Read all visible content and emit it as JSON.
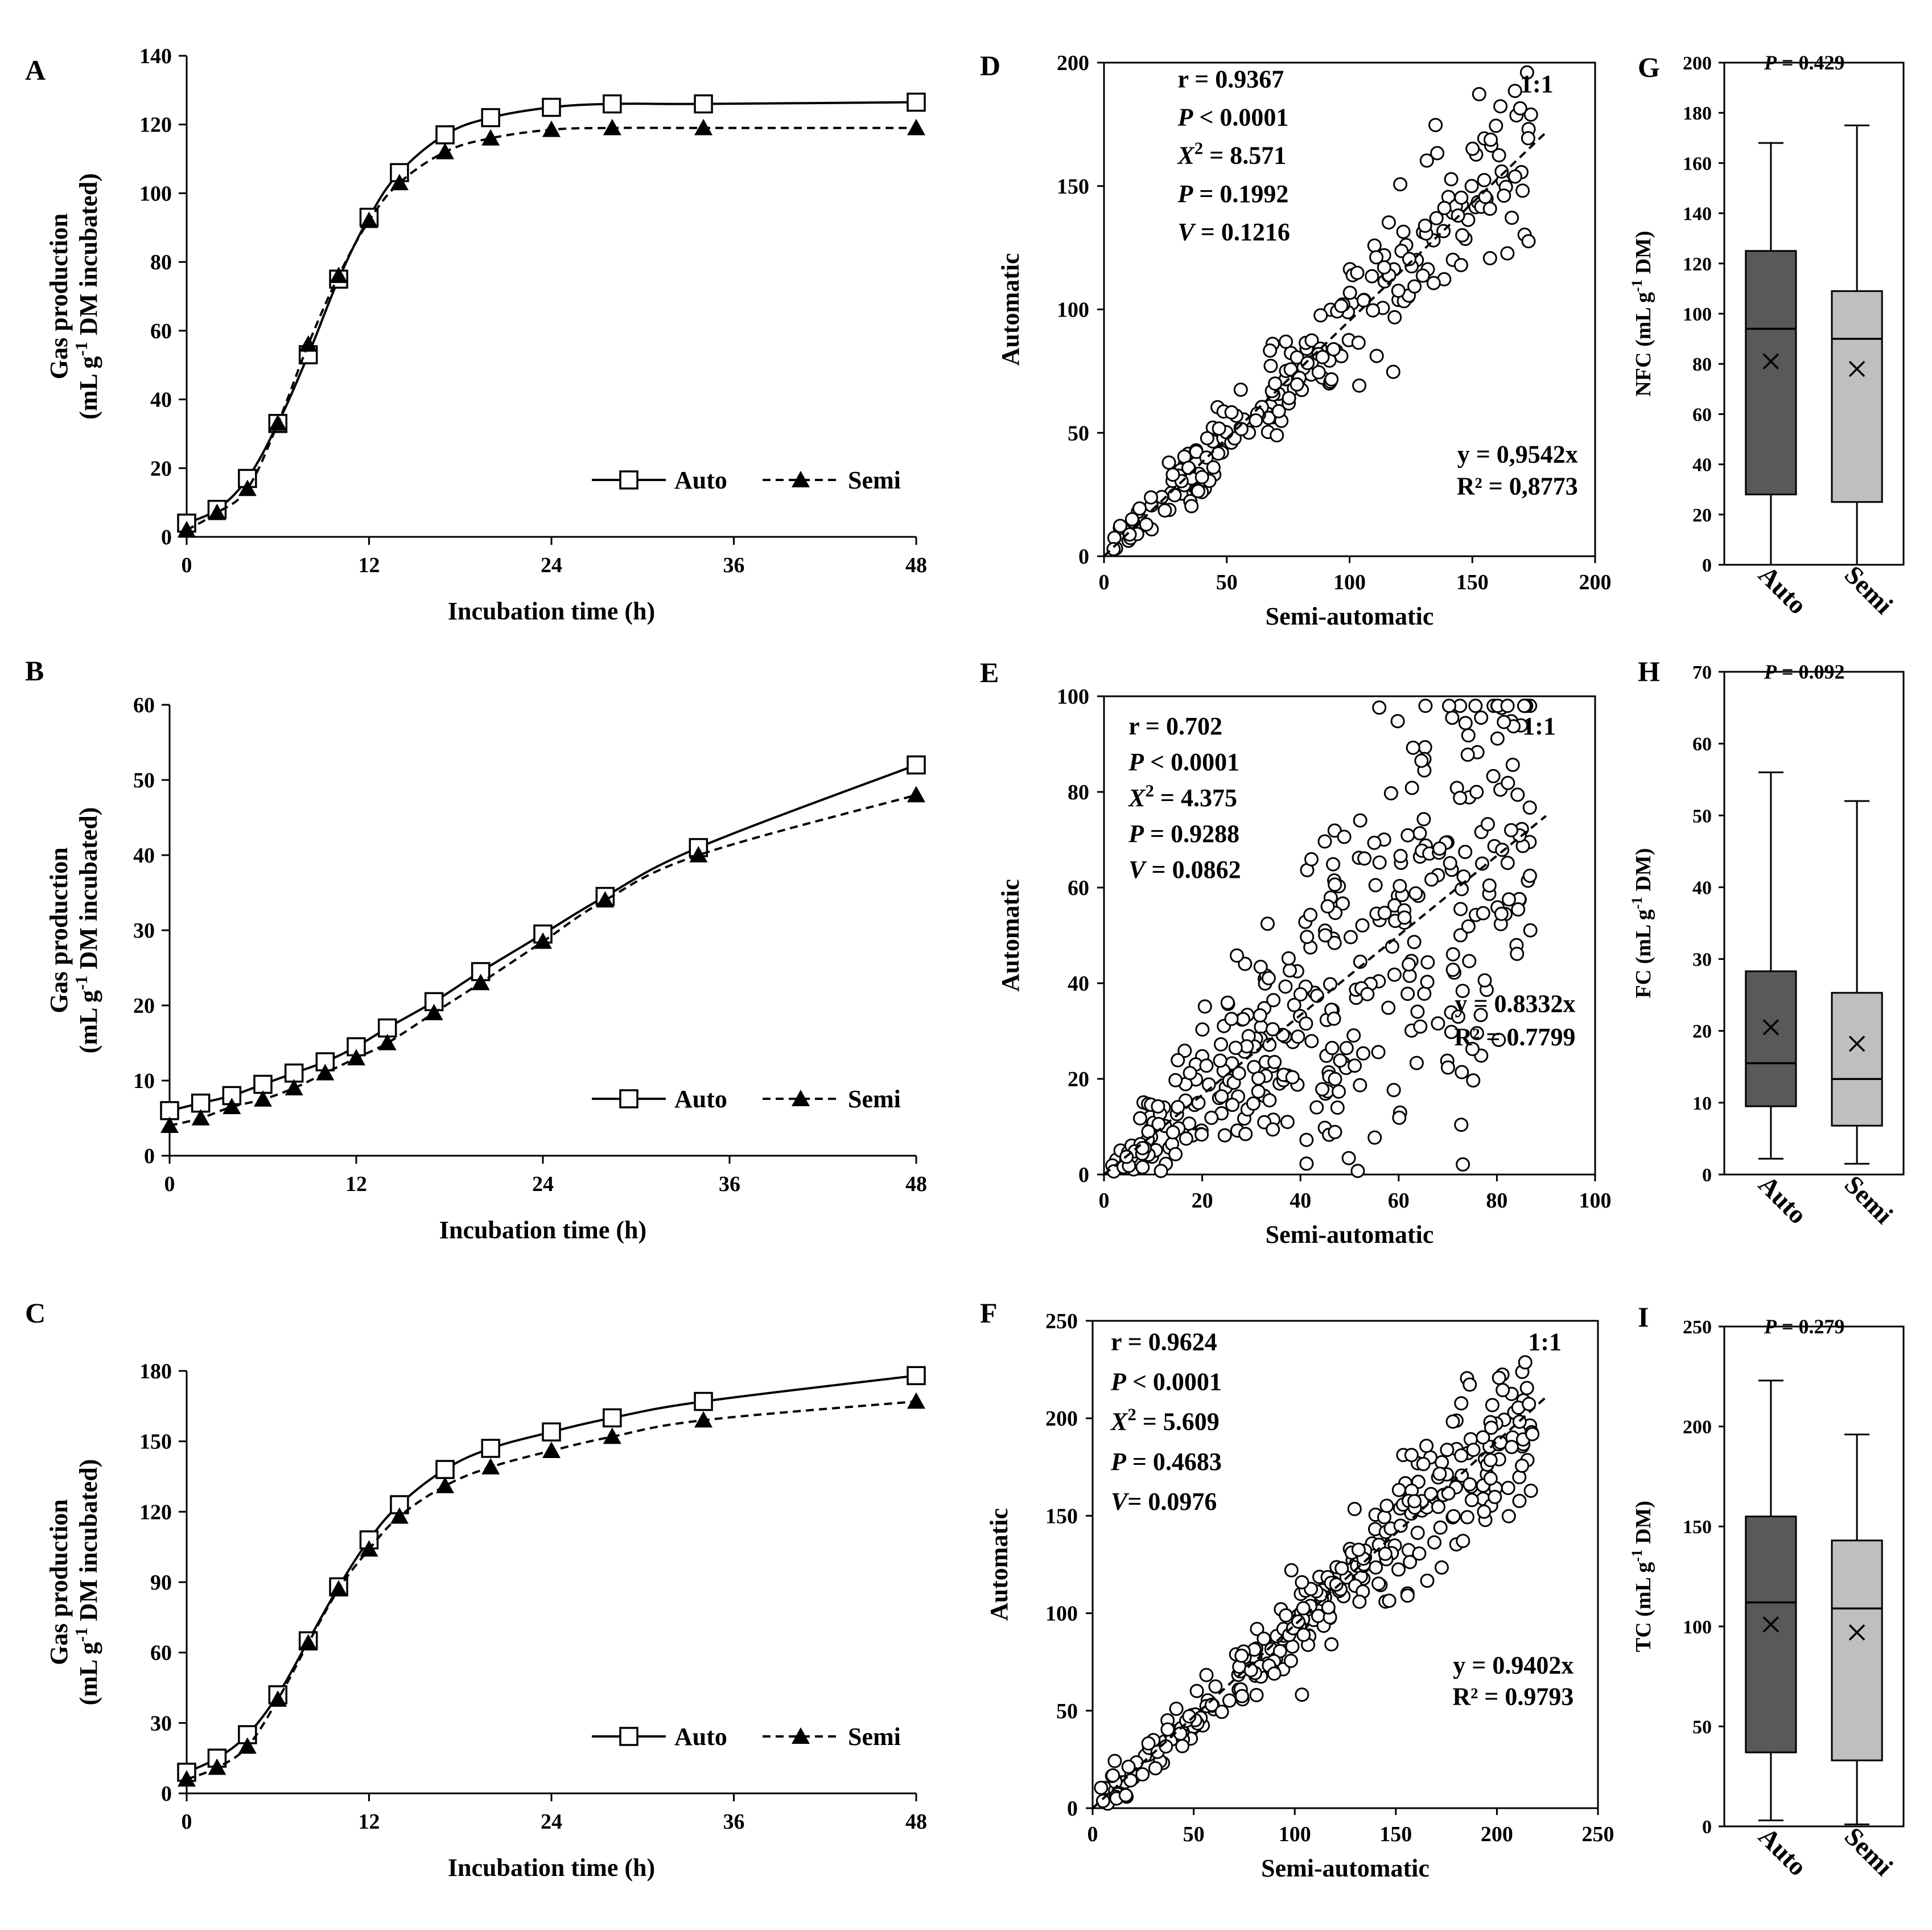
{
  "figure": {
    "background": "#ffffff",
    "line_color": "#000000",
    "box_colors": [
      "#595959",
      "#bfbfbf"
    ]
  },
  "chart_data": [
    {
      "id": "A",
      "type": "line",
      "letter": "A",
      "xlabel": "Incubation time (h)",
      "ylabel_line1": "Gas production",
      "ylabel_line2": "(mL g-1 DM incubated)",
      "xlim": [
        0,
        48
      ],
      "ylim": [
        0,
        140
      ],
      "xticks": [
        0,
        12,
        24,
        36,
        48
      ],
      "yticks": [
        0,
        20,
        40,
        60,
        80,
        100,
        120,
        140
      ],
      "legend": [
        "Auto",
        "Semi"
      ],
      "series": [
        {
          "name": "Auto",
          "marker": "square-open",
          "line": "solid",
          "x": [
            0,
            2,
            4,
            6,
            8,
            10,
            12,
            14,
            17,
            20,
            24,
            28,
            34,
            48
          ],
          "y": [
            4,
            8,
            17,
            33,
            53,
            75,
            93,
            106,
            117,
            122,
            125,
            126,
            126,
            126.5
          ]
        },
        {
          "name": "Semi",
          "marker": "triangle-filled",
          "line": "dashed",
          "x": [
            0,
            2,
            4,
            6,
            8,
            10,
            12,
            14,
            17,
            20,
            24,
            28,
            34,
            48
          ],
          "y": [
            2,
            7,
            14,
            33,
            56,
            76,
            92,
            103,
            112,
            116,
            118.5,
            119,
            119,
            119
          ]
        }
      ]
    },
    {
      "id": "B",
      "type": "line",
      "letter": "B",
      "xlabel": "Incubation time (h)",
      "ylabel_line1": "Gas production",
      "ylabel_line2": "(mL g-1 DM incubated)",
      "xlim": [
        0,
        48
      ],
      "ylim": [
        0,
        60
      ],
      "xticks": [
        0,
        12,
        24,
        36,
        48
      ],
      "yticks": [
        0,
        10,
        20,
        30,
        40,
        50,
        60
      ],
      "legend": [
        "Auto",
        "Semi"
      ],
      "series": [
        {
          "name": "Auto",
          "marker": "square-open",
          "line": "solid",
          "x": [
            0,
            2,
            4,
            6,
            8,
            10,
            12,
            14,
            17,
            20,
            24,
            28,
            34,
            48
          ],
          "y": [
            6,
            7,
            8,
            9.5,
            11,
            12.5,
            14.5,
            17,
            20.5,
            24.5,
            29.5,
            34.5,
            41,
            52
          ]
        },
        {
          "name": "Semi",
          "marker": "triangle-filled",
          "line": "dashed",
          "x": [
            0,
            2,
            4,
            6,
            8,
            10,
            12,
            14,
            17,
            20,
            24,
            28,
            34,
            48
          ],
          "y": [
            4,
            5,
            6.5,
            7.5,
            9,
            11,
            13,
            15,
            19,
            23,
            28.5,
            34,
            40,
            48
          ]
        }
      ]
    },
    {
      "id": "C",
      "type": "line",
      "letter": "C",
      "xlabel": "Incubation time (h)",
      "ylabel_line1": "Gas production",
      "ylabel_line2": "(mL g-1 DM incubated)",
      "xlim": [
        0,
        48
      ],
      "ylim": [
        0,
        180
      ],
      "xticks": [
        0,
        12,
        24,
        36,
        48
      ],
      "yticks": [
        0,
        30,
        60,
        90,
        120,
        150,
        180
      ],
      "legend": [
        "Auto",
        "Semi"
      ],
      "series": [
        {
          "name": "Auto",
          "marker": "square-open",
          "line": "solid",
          "x": [
            0,
            2,
            4,
            6,
            8,
            10,
            12,
            14,
            17,
            20,
            24,
            28,
            34,
            48
          ],
          "y": [
            9,
            15,
            25,
            42,
            65,
            88,
            108,
            123,
            138,
            147,
            154,
            160,
            167,
            178
          ]
        },
        {
          "name": "Semi",
          "marker": "triangle-filled",
          "line": "dashed",
          "x": [
            0,
            2,
            4,
            6,
            8,
            10,
            12,
            14,
            17,
            20,
            24,
            28,
            34,
            48
          ],
          "y": [
            6,
            11,
            20,
            40,
            64,
            87,
            104,
            118,
            131,
            139,
            146,
            152,
            159,
            167
          ]
        }
      ]
    },
    {
      "id": "D",
      "type": "scatter",
      "letter": "D",
      "xlabel": "Semi-automatic",
      "ylabel": "Automatic",
      "xlim": [
        0,
        200
      ],
      "ylim": [
        0,
        200
      ],
      "xticks": [
        0,
        50,
        100,
        150,
        200
      ],
      "yticks": [
        0,
        50,
        100,
        150,
        200
      ],
      "stats": [
        "r = 0.9367",
        "P < 0.0001",
        "X2 = 8.571",
        "P = 0.1992",
        "V = 0.1216"
      ],
      "ratio_label": "1:1",
      "equation": "y = 0,9542x",
      "r2": "R² = 0,8773",
      "fit_slope": 0.9542,
      "n_points": 240,
      "noise": 0.12,
      "seed": 11,
      "stat_x": 30,
      "stat_y0": 190,
      "stat_dy": 15.5,
      "ratio_x": 183,
      "ratio_y": 188,
      "eq_x": 193,
      "eq_y": 38,
      "r2_y": 25
    },
    {
      "id": "E",
      "type": "scatter",
      "letter": "E",
      "xlabel": "Semi-automatic",
      "ylabel": "Automatic",
      "xlim": [
        0,
        100
      ],
      "ylim": [
        0,
        100
      ],
      "xticks": [
        0,
        20,
        40,
        60,
        80,
        100
      ],
      "yticks": [
        0,
        20,
        40,
        60,
        80,
        100
      ],
      "stats": [
        "r = 0.702",
        "P < 0.0001",
        "X2 = 4.375",
        "P = 0.9288",
        "V = 0.0862"
      ],
      "ratio_label": "1:1",
      "equation": "y = 0.8332x",
      "r2": "R² = 0.7799",
      "fit_slope": 0.8332,
      "n_points": 380,
      "noise": 0.42,
      "seed": 23,
      "stat_x": 5,
      "stat_y0": 92,
      "stat_dy": 7.5,
      "ratio_x": 92,
      "ratio_y": 92,
      "eq_x": 96,
      "eq_y": 34,
      "r2_y": 27
    },
    {
      "id": "F",
      "type": "scatter",
      "letter": "F",
      "xlabel": "Semi-automatic",
      "ylabel": "Automatic",
      "xlim": [
        0,
        250
      ],
      "ylim": [
        0,
        250
      ],
      "xticks": [
        0,
        50,
        100,
        150,
        200,
        250
      ],
      "yticks": [
        0,
        50,
        100,
        150,
        200,
        250
      ],
      "stats": [
        "r = 0.9624",
        "P < 0.0001",
        "X2 = 5.609",
        "P = 0.4683",
        "V= 0.0976"
      ],
      "ratio_label": "1:1",
      "equation": "y = 0.9402x",
      "r2": "R² = 0.9793",
      "fit_slope": 0.9402,
      "n_points": 320,
      "noise": 0.1,
      "seed": 37,
      "stat_x": 9,
      "stat_y0": 235,
      "stat_dy": 20.5,
      "ratio_x": 232,
      "ratio_y": 235,
      "eq_x": 238,
      "eq_y": 69,
      "r2_y": 53
    },
    {
      "id": "G",
      "type": "box",
      "letter": "G",
      "pvalue": "P = 0.429",
      "ylabel": "NFC (mL g-1 DM)",
      "ylim": [
        0,
        200
      ],
      "yticks": [
        0,
        20,
        40,
        60,
        80,
        100,
        120,
        140,
        160,
        180,
        200
      ],
      "boxes": [
        {
          "name": "Auto",
          "min": 0,
          "q1": 28,
          "median": 94,
          "q3": 125,
          "max": 168,
          "mean": 81
        },
        {
          "name": "Semi",
          "min": 0,
          "q1": 25,
          "median": 90,
          "q3": 109,
          "max": 175,
          "mean": 78
        }
      ]
    },
    {
      "id": "H",
      "type": "box",
      "letter": "H",
      "pvalue": "P = 0.092",
      "ylabel": "FC (mL g-1 DM)",
      "ylim": [
        0,
        70
      ],
      "yticks": [
        0,
        10,
        20,
        30,
        40,
        50,
        60,
        70
      ],
      "boxes": [
        {
          "name": "Auto",
          "min": 2.2,
          "q1": 9.5,
          "median": 15.5,
          "q3": 28.3,
          "max": 56,
          "mean": 20.5
        },
        {
          "name": "Semi",
          "min": 1.5,
          "q1": 6.8,
          "median": 13.3,
          "q3": 25.3,
          "max": 52,
          "mean": 18.2
        }
      ]
    },
    {
      "id": "I",
      "type": "box",
      "letter": "I",
      "pvalue": "P = 0.279",
      "ylabel": "TC (mL g-1 DM)",
      "ylim": [
        0,
        250
      ],
      "yticks": [
        0,
        50,
        100,
        150,
        200,
        250
      ],
      "boxes": [
        {
          "name": "Auto",
          "min": 3,
          "q1": 37,
          "median": 112,
          "q3": 155,
          "max": 223,
          "mean": 101
        },
        {
          "name": "Semi",
          "min": 1,
          "q1": 33,
          "median": 109,
          "q3": 143,
          "max": 196,
          "mean": 97
        }
      ]
    }
  ]
}
